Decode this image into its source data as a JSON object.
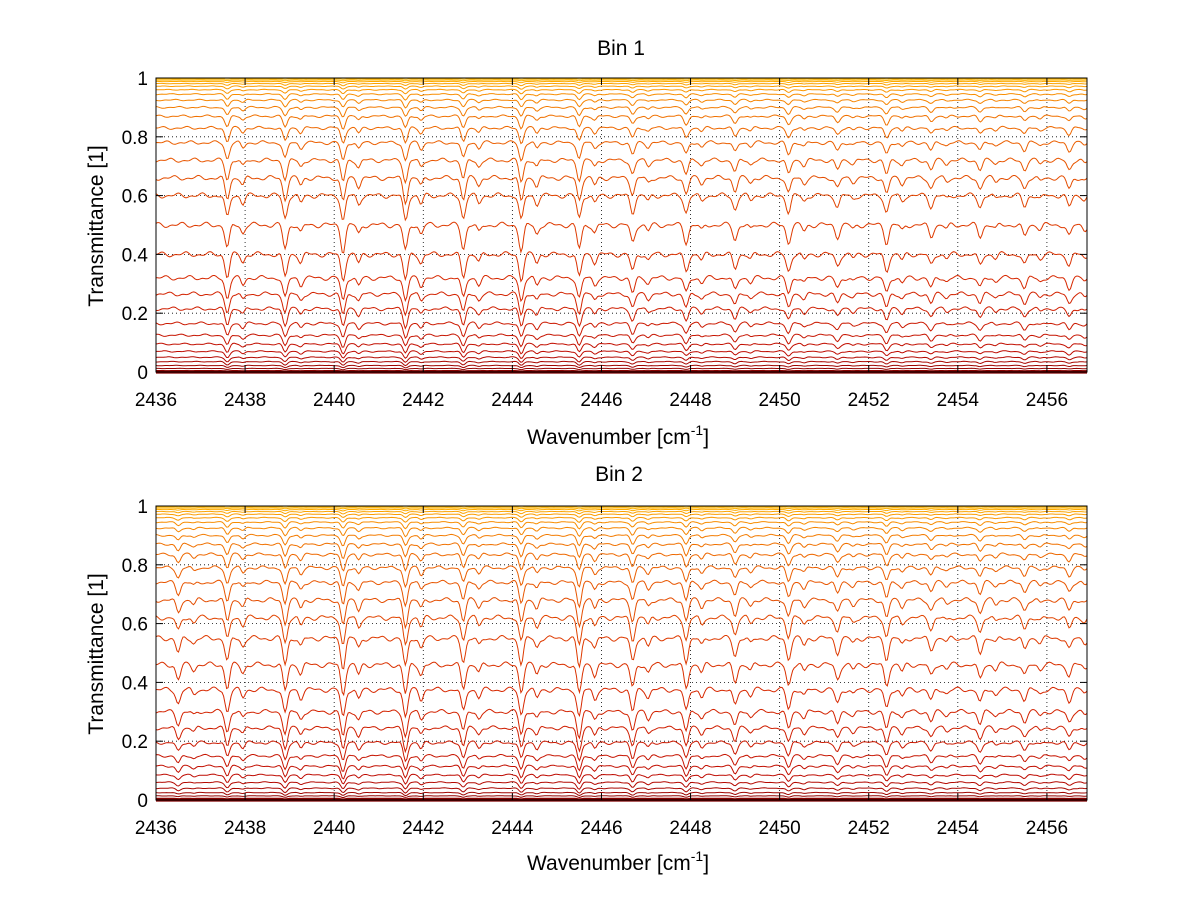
{
  "chart_data": [
    {
      "type": "line",
      "title": "Bin 1",
      "xlabel_main": "Wavenumber [cm",
      "xlabel_sup": "-1",
      "xlabel_close": "]",
      "ylabel": "Transmittance [1]",
      "xlim": [
        2436,
        2456.9
      ],
      "ylim": [
        0,
        1
      ],
      "x_ticks": [
        "2436",
        "2438",
        "2440",
        "2442",
        "2444",
        "2446",
        "2448",
        "2450",
        "2452",
        "2454",
        "2456"
      ],
      "y_ticks": [
        "0",
        "0.2",
        "0.4",
        "0.6",
        "0.8",
        "1"
      ],
      "grid": true,
      "series_levels": [
        0.0,
        0.005,
        0.012,
        0.022,
        0.035,
        0.05,
        0.07,
        0.095,
        0.125,
        0.165,
        0.215,
        0.265,
        0.32,
        0.4,
        0.5,
        0.6,
        0.66,
        0.72,
        0.78,
        0.83,
        0.87,
        0.9,
        0.925,
        0.945,
        0.96,
        0.972,
        0.981,
        0.988,
        0.993,
        0.997,
        1.0
      ],
      "absorption_lines": [
        {
          "x": 2437.6,
          "depth": 0.08
        },
        {
          "x": 2438.9,
          "depth": 0.08
        },
        {
          "x": 2440.2,
          "depth": 0.09
        },
        {
          "x": 2441.6,
          "depth": 0.09
        },
        {
          "x": 2442.9,
          "depth": 0.08
        },
        {
          "x": 2444.2,
          "depth": 0.09
        },
        {
          "x": 2445.5,
          "depth": 0.08
        },
        {
          "x": 2446.7,
          "depth": 0.06
        },
        {
          "x": 2447.9,
          "depth": 0.06
        },
        {
          "x": 2449.0,
          "depth": 0.05
        },
        {
          "x": 2450.2,
          "depth": 0.06
        },
        {
          "x": 2451.3,
          "depth": 0.04
        },
        {
          "x": 2452.4,
          "depth": 0.06
        },
        {
          "x": 2453.4,
          "depth": 0.04
        },
        {
          "x": 2454.5,
          "depth": 0.04
        },
        {
          "x": 2455.5,
          "depth": 0.04
        },
        {
          "x": 2456.5,
          "depth": 0.04
        }
      ]
    },
    {
      "type": "line",
      "title": "Bin 2",
      "xlabel_main": "Wavenumber [cm",
      "xlabel_sup": "-1",
      "xlabel_close": "]",
      "ylabel": "Transmittance [1]",
      "xlim": [
        2436,
        2456.9
      ],
      "ylim": [
        0,
        1
      ],
      "x_ticks": [
        "2436",
        "2438",
        "2440",
        "2442",
        "2444",
        "2446",
        "2448",
        "2450",
        "2452",
        "2454",
        "2456"
      ],
      "y_ticks": [
        "0",
        "0.2",
        "0.4",
        "0.6",
        "0.8",
        "1"
      ],
      "grid": true,
      "series_levels": [
        0.0,
        0.006,
        0.014,
        0.025,
        0.04,
        0.06,
        0.085,
        0.115,
        0.15,
        0.195,
        0.245,
        0.3,
        0.375,
        0.46,
        0.55,
        0.62,
        0.68,
        0.74,
        0.79,
        0.835,
        0.87,
        0.9,
        0.925,
        0.945,
        0.96,
        0.972,
        0.981,
        0.988,
        0.993,
        0.997,
        1.0
      ],
      "absorption_lines": [
        {
          "x": 2436.5,
          "depth": 0.05
        },
        {
          "x": 2437.6,
          "depth": 0.08
        },
        {
          "x": 2438.9,
          "depth": 0.09
        },
        {
          "x": 2440.2,
          "depth": 0.1
        },
        {
          "x": 2441.6,
          "depth": 0.1
        },
        {
          "x": 2442.9,
          "depth": 0.08
        },
        {
          "x": 2444.2,
          "depth": 0.09
        },
        {
          "x": 2445.5,
          "depth": 0.1
        },
        {
          "x": 2446.7,
          "depth": 0.08
        },
        {
          "x": 2447.9,
          "depth": 0.08
        },
        {
          "x": 2449.0,
          "depth": 0.06
        },
        {
          "x": 2450.2,
          "depth": 0.07
        },
        {
          "x": 2451.3,
          "depth": 0.05
        },
        {
          "x": 2452.4,
          "depth": 0.07
        },
        {
          "x": 2453.4,
          "depth": 0.04
        },
        {
          "x": 2454.5,
          "depth": 0.05
        },
        {
          "x": 2455.5,
          "depth": 0.04
        },
        {
          "x": 2456.5,
          "depth": 0.04
        }
      ]
    }
  ]
}
